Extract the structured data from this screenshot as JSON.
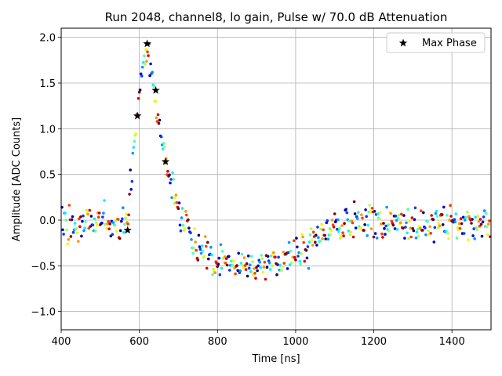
{
  "chart_data": {
    "type": "scatter",
    "title": "Run 2048, channel8, lo gain, Pulse w/ 70.0 dB Attenuation",
    "xlabel": "Time [ns]",
    "ylabel": "Amplitude [ADC Counts]",
    "xlim": [
      400,
      1500
    ],
    "ylim": [
      -1.2,
      2.1
    ],
    "xticks": [
      400,
      600,
      800,
      1000,
      1200,
      1400
    ],
    "yticks": [
      -1.0,
      -0.5,
      0.0,
      0.5,
      1.0,
      1.5,
      2.0
    ],
    "grid": true,
    "legend_position": "upper right",
    "colormap": "jet",
    "series_count": 12,
    "series": [
      {
        "name": "Max Phase",
        "marker": "star",
        "color": "#000000",
        "x": [
          570,
          595,
          620,
          642,
          667
        ],
        "y": [
          -0.11,
          1.14,
          1.93,
          1.42,
          0.64
        ]
      }
    ],
    "profile": [
      [
        400,
        -0.05
      ],
      [
        450,
        -0.05
      ],
      [
        500,
        -0.05
      ],
      [
        540,
        -0.05
      ],
      [
        560,
        0.0
      ],
      [
        570,
        0.1
      ],
      [
        580,
        0.5
      ],
      [
        590,
        0.95
      ],
      [
        600,
        1.45
      ],
      [
        610,
        1.75
      ],
      [
        620,
        1.85
      ],
      [
        630,
        1.65
      ],
      [
        640,
        1.35
      ],
      [
        650,
        1.05
      ],
      [
        660,
        0.8
      ],
      [
        670,
        0.6
      ],
      [
        680,
        0.45
      ],
      [
        690,
        0.3
      ],
      [
        700,
        0.15
      ],
      [
        720,
        -0.1
      ],
      [
        750,
        -0.3
      ],
      [
        800,
        -0.42
      ],
      [
        850,
        -0.47
      ],
      [
        900,
        -0.5
      ],
      [
        950,
        -0.48
      ],
      [
        1000,
        -0.42
      ],
      [
        1030,
        -0.3
      ],
      [
        1060,
        -0.15
      ],
      [
        1100,
        -0.05
      ],
      [
        1200,
        0.0
      ],
      [
        1300,
        -0.05
      ],
      [
        1400,
        -0.05
      ],
      [
        1500,
        -0.05
      ]
    ],
    "noise_sd": 0.14
  }
}
